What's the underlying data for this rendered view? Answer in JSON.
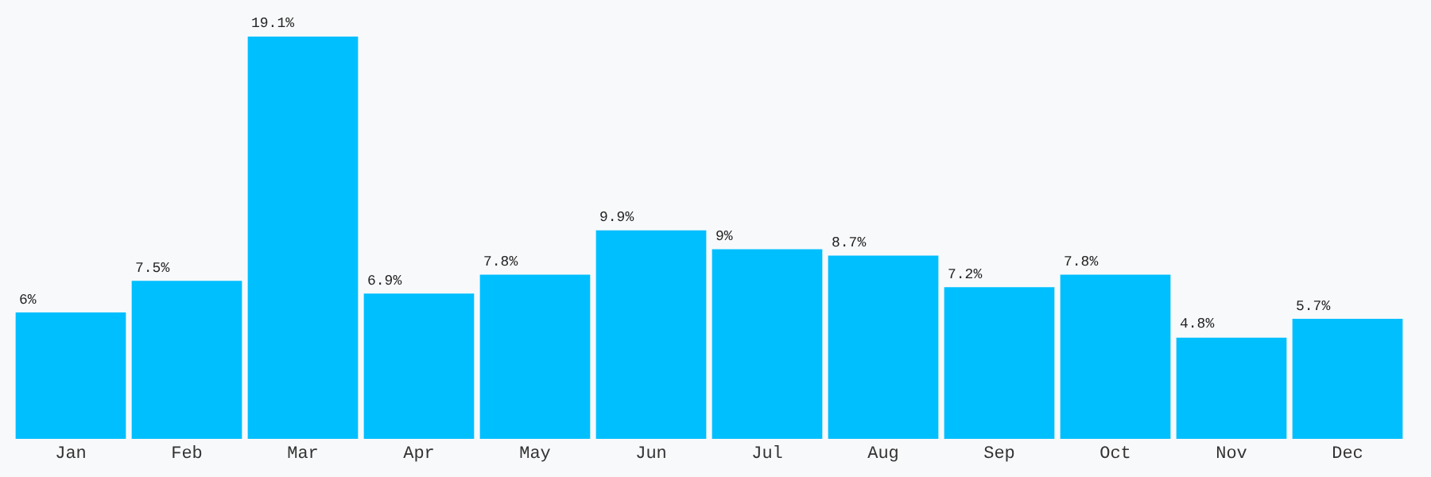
{
  "chart_data": {
    "type": "bar",
    "categories": [
      "Jan",
      "Feb",
      "Mar",
      "Apr",
      "May",
      "Jun",
      "Jul",
      "Aug",
      "Sep",
      "Oct",
      "Nov",
      "Dec"
    ],
    "values": [
      6,
      7.5,
      19.1,
      6.9,
      7.8,
      9.9,
      9,
      8.7,
      7.2,
      7.8,
      4.8,
      5.7
    ],
    "value_labels": [
      "6%",
      "7.5%",
      "19.1%",
      "6.9%",
      "7.8%",
      "9.9%",
      "9%",
      "8.7%",
      "7.2%",
      "7.8%",
      "4.8%",
      "5.7%"
    ],
    "color": "#00bfff",
    "grid": false,
    "legend": false
  }
}
